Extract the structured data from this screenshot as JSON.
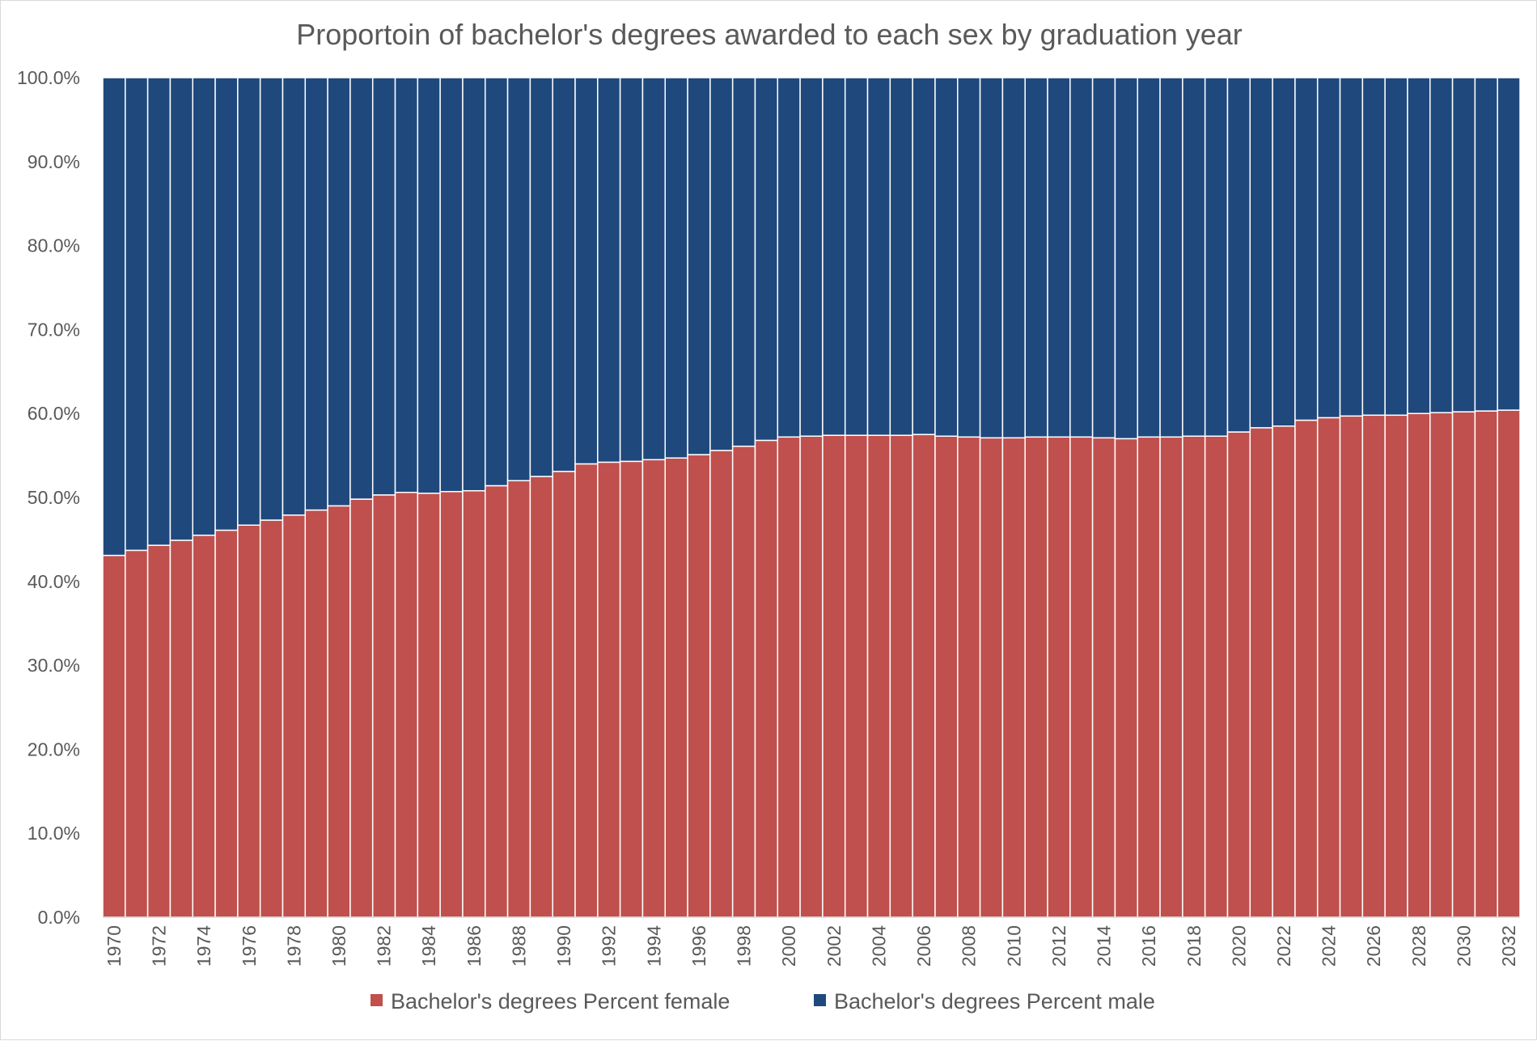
{
  "chart_data": {
    "type": "bar",
    "stacked": true,
    "normalized": true,
    "title": "Proportoin of bachelor's degrees awarded to each sex by graduation year",
    "xlabel": "",
    "ylabel": "",
    "ylim": [
      0,
      100
    ],
    "y_ticks": [
      "0.0%",
      "10.0%",
      "20.0%",
      "30.0%",
      "40.0%",
      "50.0%",
      "60.0%",
      "70.0%",
      "80.0%",
      "90.0%",
      "100.0%"
    ],
    "x_tick_labels": [
      "1970",
      "1972",
      "1974",
      "1976",
      "1978",
      "1980",
      "1982",
      "1984",
      "1986",
      "1988",
      "1990",
      "1992",
      "1994",
      "1996",
      "1998",
      "2000",
      "2002",
      "2004",
      "2006",
      "2008",
      "2010",
      "2012",
      "2014",
      "2016",
      "2018",
      "2020",
      "2022",
      "2024",
      "2026",
      "2028",
      "2030",
      "2032"
    ],
    "categories": [
      "1970",
      "1971",
      "1972",
      "1973",
      "1974",
      "1975",
      "1976",
      "1977",
      "1978",
      "1979",
      "1980",
      "1981",
      "1982",
      "1983",
      "1984",
      "1985",
      "1986",
      "1987",
      "1988",
      "1989",
      "1990",
      "1991",
      "1992",
      "1993",
      "1994",
      "1995",
      "1996",
      "1997",
      "1998",
      "1999",
      "2000",
      "2001",
      "2002",
      "2003",
      "2004",
      "2005",
      "2006",
      "2007",
      "2008",
      "2009",
      "2010",
      "2011",
      "2012",
      "2013",
      "2014",
      "2015",
      "2016",
      "2017",
      "2018",
      "2019",
      "2020",
      "2021",
      "2022",
      "2023",
      "2024",
      "2025",
      "2026",
      "2027",
      "2028",
      "2029",
      "2030",
      "2031",
      "2032"
    ],
    "series": [
      {
        "name": "Bachelor's degrees Percent female",
        "color": "#c0504d",
        "values": [
          43.1,
          43.7,
          44.3,
          44.9,
          45.5,
          46.1,
          46.7,
          47.3,
          47.9,
          48.5,
          49.0,
          49.8,
          50.3,
          50.6,
          50.5,
          50.7,
          50.8,
          51.4,
          52.0,
          52.5,
          53.1,
          54.0,
          54.2,
          54.3,
          54.5,
          54.7,
          55.1,
          55.6,
          56.1,
          56.8,
          57.2,
          57.3,
          57.4,
          57.4,
          57.4,
          57.4,
          57.5,
          57.3,
          57.2,
          57.1,
          57.1,
          57.2,
          57.2,
          57.2,
          57.1,
          57.0,
          57.2,
          57.2,
          57.3,
          57.3,
          57.8,
          58.3,
          58.5,
          59.2,
          59.5,
          59.7,
          59.8,
          59.8,
          60.0,
          60.1,
          60.2,
          60.3,
          60.4
        ]
      },
      {
        "name": "Bachelor's degrees Percent male",
        "color": "#1f497d",
        "values": [
          56.9,
          56.3,
          55.7,
          55.1,
          54.5,
          53.9,
          53.3,
          52.7,
          52.1,
          51.5,
          51.0,
          50.2,
          49.7,
          49.4,
          49.5,
          49.3,
          49.2,
          48.6,
          48.0,
          47.5,
          46.9,
          46.0,
          45.8,
          45.7,
          45.5,
          45.3,
          44.9,
          44.4,
          43.9,
          43.2,
          42.8,
          42.7,
          42.6,
          42.6,
          42.6,
          42.6,
          42.5,
          42.7,
          42.8,
          42.9,
          42.9,
          42.8,
          42.8,
          42.8,
          42.9,
          43.0,
          42.8,
          42.8,
          42.7,
          42.7,
          42.2,
          41.7,
          41.5,
          40.8,
          40.5,
          40.3,
          40.2,
          40.2,
          40.0,
          39.9,
          39.8,
          39.7,
          39.6
        ]
      }
    ],
    "legend": {
      "position": "bottom"
    },
    "grid": false
  }
}
